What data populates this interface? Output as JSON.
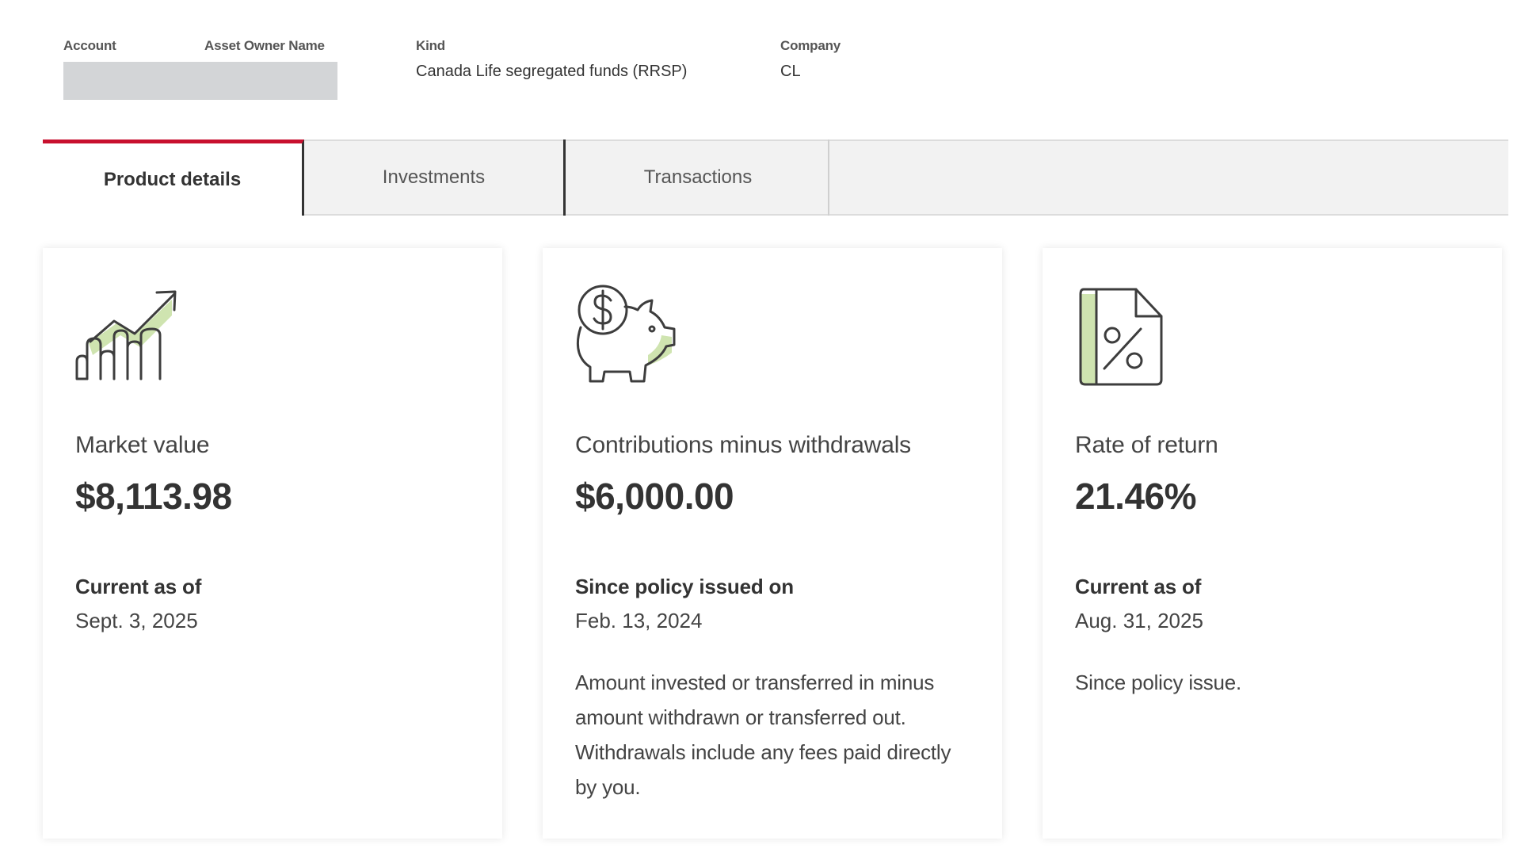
{
  "header": {
    "account_label": "Account",
    "owner_label": "Asset Owner Name",
    "kind_label": "Kind",
    "kind_value": "Canada Life segregated funds (RRSP)",
    "company_label": "Company",
    "company_value": "CL"
  },
  "tabs": [
    {
      "label": "Product details",
      "active": true
    },
    {
      "label": "Investments",
      "active": false
    },
    {
      "label": "Transactions",
      "active": false
    }
  ],
  "cards": [
    {
      "icon": "growth-chart-icon",
      "title": "Market value",
      "amount": "$8,113.98",
      "sub_label": "Current as of",
      "sub_value": "Sept. 3, 2025",
      "note": ""
    },
    {
      "icon": "piggy-bank-dollar-icon",
      "title": "Contributions minus withdrawals",
      "amount": "$6,000.00",
      "sub_label": "Since policy issued on",
      "sub_value": "Feb. 13, 2024",
      "note": "Amount invested or transferred in minus amount withdrawn or transferred out. Withdrawals include any fees paid directly by you."
    },
    {
      "icon": "percent-document-icon",
      "title": "Rate of return",
      "amount": "21.46%",
      "sub_label": "Current as of",
      "sub_value": "Aug. 31, 2025",
      "note": "Since policy issue."
    }
  ],
  "colors": {
    "accent": "#c8102e",
    "icon_stroke": "#3d3d3d",
    "icon_highlight": "#cfe4b0",
    "redacted": "#d3d5d7"
  }
}
